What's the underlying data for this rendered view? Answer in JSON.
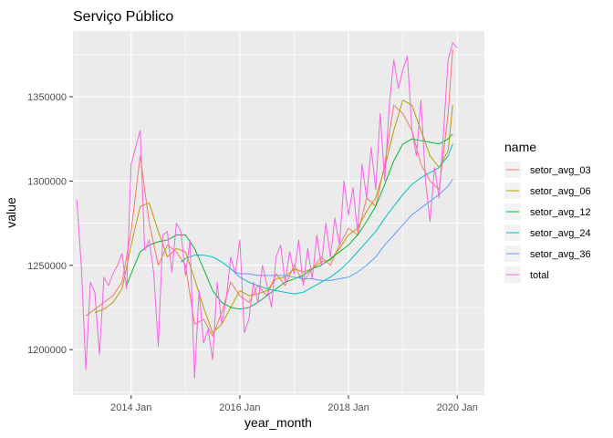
{
  "chart_data": {
    "type": "line",
    "title": "Serviço Público",
    "xlabel": "year_month",
    "ylabel": "value",
    "x_ticks": [
      {
        "x": 2014.0,
        "label": "2014 Jan"
      },
      {
        "x": 2016.0,
        "label": "2016 Jan"
      },
      {
        "x": 2018.0,
        "label": "2018 Jan"
      },
      {
        "x": 2020.0,
        "label": "2020 Jan"
      }
    ],
    "y_ticks": [
      {
        "y": 1200000,
        "label": "1200000"
      },
      {
        "y": 1250000,
        "label": "1250000"
      },
      {
        "y": 1300000,
        "label": "1300000"
      },
      {
        "y": 1350000,
        "label": "1350000"
      }
    ],
    "xlim": [
      2012.93,
      2020.5
    ],
    "ylim": [
      1173000,
      1389000
    ],
    "grid": true,
    "legend_title": "name",
    "legend_position": "right",
    "panel_background": "#EBEBEB",
    "series": [
      {
        "name": "setor_avg_03",
        "color": "#F8766D",
        "points": [
          [
            2013.167,
            1220000
          ],
          [
            2013.333,
            1224000
          ],
          [
            2013.5,
            1228000
          ],
          [
            2013.667,
            1232000
          ],
          [
            2013.833,
            1240000
          ],
          [
            2014.0,
            1270000
          ],
          [
            2014.167,
            1315000
          ],
          [
            2014.333,
            1275000
          ],
          [
            2014.5,
            1250000
          ],
          [
            2014.667,
            1262000
          ],
          [
            2014.833,
            1258000
          ],
          [
            2015.0,
            1250000
          ],
          [
            2015.167,
            1215000
          ],
          [
            2015.333,
            1218000
          ],
          [
            2015.5,
            1208000
          ],
          [
            2015.667,
            1222000
          ],
          [
            2015.833,
            1240000
          ],
          [
            2016.0,
            1232000
          ],
          [
            2016.167,
            1228000
          ],
          [
            2016.333,
            1238000
          ],
          [
            2016.5,
            1232000
          ],
          [
            2016.667,
            1245000
          ],
          [
            2016.833,
            1238000
          ],
          [
            2017.0,
            1250000
          ],
          [
            2017.167,
            1240000
          ],
          [
            2017.333,
            1248000
          ],
          [
            2017.5,
            1255000
          ],
          [
            2017.667,
            1250000
          ],
          [
            2017.833,
            1262000
          ],
          [
            2018.0,
            1272000
          ],
          [
            2018.167,
            1268000
          ],
          [
            2018.333,
            1290000
          ],
          [
            2018.5,
            1285000
          ],
          [
            2018.667,
            1310000
          ],
          [
            2018.833,
            1345000
          ],
          [
            2019.0,
            1340000
          ],
          [
            2019.167,
            1330000
          ],
          [
            2019.333,
            1310000
          ],
          [
            2019.5,
            1300000
          ],
          [
            2019.667,
            1295000
          ],
          [
            2019.833,
            1340000
          ],
          [
            2019.917,
            1378000
          ]
        ]
      },
      {
        "name": "setor_avg_06",
        "color": "#B79F00",
        "points": [
          [
            2013.333,
            1222000
          ],
          [
            2013.5,
            1224000
          ],
          [
            2013.667,
            1228000
          ],
          [
            2013.833,
            1236000
          ],
          [
            2014.0,
            1262000
          ],
          [
            2014.167,
            1285000
          ],
          [
            2014.333,
            1287000
          ],
          [
            2014.5,
            1270000
          ],
          [
            2014.667,
            1255000
          ],
          [
            2014.833,
            1260000
          ],
          [
            2015.0,
            1258000
          ],
          [
            2015.167,
            1242000
          ],
          [
            2015.333,
            1225000
          ],
          [
            2015.5,
            1210000
          ],
          [
            2015.667,
            1215000
          ],
          [
            2015.833,
            1225000
          ],
          [
            2016.0,
            1235000
          ],
          [
            2016.167,
            1232000
          ],
          [
            2016.333,
            1233000
          ],
          [
            2016.5,
            1235000
          ],
          [
            2016.667,
            1242000
          ],
          [
            2016.833,
            1243000
          ],
          [
            2017.0,
            1248000
          ],
          [
            2017.167,
            1246000
          ],
          [
            2017.333,
            1248000
          ],
          [
            2017.5,
            1252000
          ],
          [
            2017.667,
            1253000
          ],
          [
            2017.833,
            1260000
          ],
          [
            2018.0,
            1268000
          ],
          [
            2018.167,
            1272000
          ],
          [
            2018.333,
            1282000
          ],
          [
            2018.5,
            1290000
          ],
          [
            2018.667,
            1308000
          ],
          [
            2018.833,
            1330000
          ],
          [
            2019.0,
            1348000
          ],
          [
            2019.167,
            1345000
          ],
          [
            2019.333,
            1330000
          ],
          [
            2019.5,
            1315000
          ],
          [
            2019.667,
            1308000
          ],
          [
            2019.833,
            1318000
          ],
          [
            2019.917,
            1345000
          ]
        ]
      },
      {
        "name": "setor_avg_12",
        "color": "#00BA38",
        "points": [
          [
            2013.917,
            1238000
          ],
          [
            2014.0,
            1245000
          ],
          [
            2014.167,
            1258000
          ],
          [
            2014.333,
            1262000
          ],
          [
            2014.5,
            1264000
          ],
          [
            2014.667,
            1265000
          ],
          [
            2014.833,
            1268000
          ],
          [
            2015.0,
            1268000
          ],
          [
            2015.167,
            1260000
          ],
          [
            2015.333,
            1248000
          ],
          [
            2015.5,
            1235000
          ],
          [
            2015.667,
            1228000
          ],
          [
            2015.833,
            1225000
          ],
          [
            2016.0,
            1224000
          ],
          [
            2016.167,
            1225000
          ],
          [
            2016.333,
            1228000
          ],
          [
            2016.5,
            1232000
          ],
          [
            2016.667,
            1236000
          ],
          [
            2016.833,
            1240000
          ],
          [
            2017.0,
            1242000
          ],
          [
            2017.167,
            1244000
          ],
          [
            2017.333,
            1248000
          ],
          [
            2017.5,
            1250000
          ],
          [
            2017.667,
            1254000
          ],
          [
            2017.833,
            1258000
          ],
          [
            2018.0,
            1262000
          ],
          [
            2018.167,
            1268000
          ],
          [
            2018.333,
            1276000
          ],
          [
            2018.5,
            1285000
          ],
          [
            2018.667,
            1298000
          ],
          [
            2018.833,
            1312000
          ],
          [
            2019.0,
            1322000
          ],
          [
            2019.167,
            1325000
          ],
          [
            2019.333,
            1324000
          ],
          [
            2019.5,
            1323000
          ],
          [
            2019.667,
            1322000
          ],
          [
            2019.833,
            1325000
          ],
          [
            2019.917,
            1328000
          ]
        ]
      },
      {
        "name": "setor_avg_24",
        "color": "#00BFC4",
        "points": [
          [
            2014.917,
            1252000
          ],
          [
            2015.0,
            1254000
          ],
          [
            2015.167,
            1256000
          ],
          [
            2015.333,
            1256000
          ],
          [
            2015.5,
            1255000
          ],
          [
            2015.667,
            1252000
          ],
          [
            2015.833,
            1248000
          ],
          [
            2016.0,
            1243000
          ],
          [
            2016.167,
            1240000
          ],
          [
            2016.333,
            1238000
          ],
          [
            2016.5,
            1236000
          ],
          [
            2016.667,
            1235000
          ],
          [
            2016.833,
            1234000
          ],
          [
            2017.0,
            1233000
          ],
          [
            2017.167,
            1234000
          ],
          [
            2017.333,
            1237000
          ],
          [
            2017.5,
            1240000
          ],
          [
            2017.667,
            1243000
          ],
          [
            2017.833,
            1247000
          ],
          [
            2018.0,
            1252000
          ],
          [
            2018.167,
            1258000
          ],
          [
            2018.333,
            1264000
          ],
          [
            2018.5,
            1270000
          ],
          [
            2018.667,
            1278000
          ],
          [
            2018.833,
            1285000
          ],
          [
            2019.0,
            1292000
          ],
          [
            2019.167,
            1298000
          ],
          [
            2019.333,
            1302000
          ],
          [
            2019.5,
            1305000
          ],
          [
            2019.667,
            1308000
          ],
          [
            2019.833,
            1315000
          ],
          [
            2019.917,
            1322000
          ]
        ]
      },
      {
        "name": "setor_avg_36",
        "color": "#619CFF",
        "points": [
          [
            2015.917,
            1246000
          ],
          [
            2016.0,
            1245000
          ],
          [
            2016.167,
            1245000
          ],
          [
            2016.333,
            1244000
          ],
          [
            2016.5,
            1244000
          ],
          [
            2016.667,
            1244000
          ],
          [
            2016.833,
            1244000
          ],
          [
            2017.0,
            1243000
          ],
          [
            2017.167,
            1242000
          ],
          [
            2017.333,
            1242000
          ],
          [
            2017.5,
            1241000
          ],
          [
            2017.667,
            1241000
          ],
          [
            2017.833,
            1242000
          ],
          [
            2018.0,
            1243000
          ],
          [
            2018.167,
            1246000
          ],
          [
            2018.333,
            1250000
          ],
          [
            2018.5,
            1255000
          ],
          [
            2018.667,
            1262000
          ],
          [
            2018.833,
            1268000
          ],
          [
            2019.0,
            1274000
          ],
          [
            2019.167,
            1280000
          ],
          [
            2019.333,
            1284000
          ],
          [
            2019.5,
            1288000
          ],
          [
            2019.667,
            1292000
          ],
          [
            2019.833,
            1297000
          ],
          [
            2019.917,
            1301000
          ]
        ]
      },
      {
        "name": "total",
        "color": "#F564E3",
        "points": [
          [
            2013.0,
            1289000
          ],
          [
            2013.083,
            1250000
          ],
          [
            2013.167,
            1188000
          ],
          [
            2013.25,
            1240000
          ],
          [
            2013.333,
            1234000
          ],
          [
            2013.417,
            1197000
          ],
          [
            2013.5,
            1243000
          ],
          [
            2013.583,
            1238000
          ],
          [
            2013.667,
            1245000
          ],
          [
            2013.75,
            1250000
          ],
          [
            2013.833,
            1257000
          ],
          [
            2013.917,
            1236000
          ],
          [
            2014.0,
            1310000
          ],
          [
            2014.083,
            1320000
          ],
          [
            2014.167,
            1330000
          ],
          [
            2014.25,
            1259000
          ],
          [
            2014.333,
            1265000
          ],
          [
            2014.417,
            1245000
          ],
          [
            2014.5,
            1202000
          ],
          [
            2014.583,
            1268000
          ],
          [
            2014.667,
            1270000
          ],
          [
            2014.75,
            1246000
          ],
          [
            2014.833,
            1275000
          ],
          [
            2014.917,
            1270000
          ],
          [
            2015.0,
            1244000
          ],
          [
            2015.083,
            1265000
          ],
          [
            2015.167,
            1183000
          ],
          [
            2015.25,
            1235000
          ],
          [
            2015.333,
            1204000
          ],
          [
            2015.417,
            1212000
          ],
          [
            2015.5,
            1194000
          ],
          [
            2015.583,
            1240000
          ],
          [
            2015.667,
            1215000
          ],
          [
            2015.75,
            1230000
          ],
          [
            2015.833,
            1255000
          ],
          [
            2015.917,
            1245000
          ],
          [
            2016.0,
            1265000
          ],
          [
            2016.083,
            1210000
          ],
          [
            2016.167,
            1218000
          ],
          [
            2016.25,
            1240000
          ],
          [
            2016.333,
            1228000
          ],
          [
            2016.417,
            1250000
          ],
          [
            2016.5,
            1238000
          ],
          [
            2016.583,
            1225000
          ],
          [
            2016.667,
            1255000
          ],
          [
            2016.75,
            1262000
          ],
          [
            2016.833,
            1240000
          ],
          [
            2016.917,
            1258000
          ],
          [
            2017.0,
            1245000
          ],
          [
            2017.083,
            1265000
          ],
          [
            2017.167,
            1238000
          ],
          [
            2017.25,
            1260000
          ],
          [
            2017.333,
            1242000
          ],
          [
            2017.417,
            1268000
          ],
          [
            2017.5,
            1250000
          ],
          [
            2017.583,
            1275000
          ],
          [
            2017.667,
            1255000
          ],
          [
            2017.75,
            1278000
          ],
          [
            2017.833,
            1262000
          ],
          [
            2017.917,
            1300000
          ],
          [
            2018.0,
            1280000
          ],
          [
            2018.083,
            1296000
          ],
          [
            2018.167,
            1270000
          ],
          [
            2018.25,
            1310000
          ],
          [
            2018.333,
            1290000
          ],
          [
            2018.417,
            1320000
          ],
          [
            2018.5,
            1295000
          ],
          [
            2018.583,
            1340000
          ],
          [
            2018.667,
            1300000
          ],
          [
            2018.75,
            1345000
          ],
          [
            2018.833,
            1372000
          ],
          [
            2018.917,
            1355000
          ],
          [
            2019.0,
            1366000
          ],
          [
            2019.083,
            1374000
          ],
          [
            2019.167,
            1330000
          ],
          [
            2019.25,
            1315000
          ],
          [
            2019.333,
            1348000
          ],
          [
            2019.417,
            1300000
          ],
          [
            2019.5,
            1276000
          ],
          [
            2019.583,
            1308000
          ],
          [
            2019.667,
            1290000
          ],
          [
            2019.75,
            1330000
          ],
          [
            2019.833,
            1372000
          ],
          [
            2019.917,
            1382000
          ],
          [
            2020.0,
            1379000
          ]
        ]
      }
    ]
  }
}
